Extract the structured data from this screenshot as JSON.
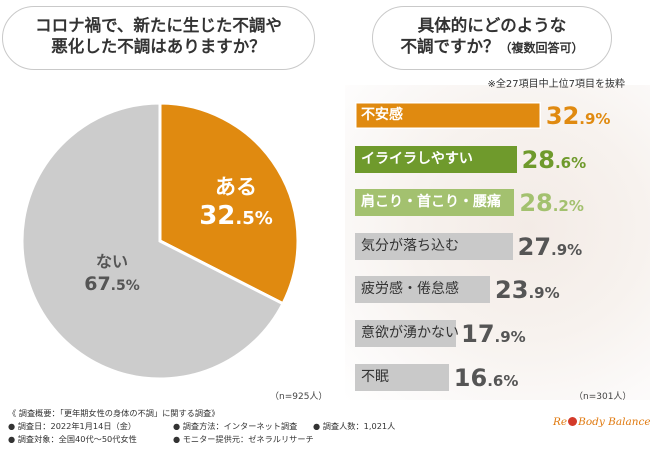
{
  "question_left": {
    "line1": "コロナ禍で、新たに生じた不調や",
    "line2": "悪化した不調はありますか？"
  },
  "question_right": {
    "line1": "具体的にどのような",
    "line2": "不調ですか？",
    "line2_small": "（複数回答可）"
  },
  "note": "※全27項目中上位7項目を抜粋",
  "n_left": "（n=925人）",
  "n_right": "（n=301人）",
  "colors": {
    "orange": "#e08a10",
    "green_dark": "#6f9a2c",
    "green_light": "#a3c16f",
    "gray_bar": "#c9c9c9",
    "pie_gray": "#cccccc",
    "pct_gray": "#555555"
  },
  "chart_data": [
    {
      "type": "pie",
      "slices": [
        {
          "name": "ある",
          "value": 32.5,
          "label_int": "32",
          "label_dec": ".5",
          "unit": "%"
        },
        {
          "name": "ない",
          "value": 67.5,
          "label_int": "67",
          "label_dec": ".5",
          "unit": "%"
        }
      ]
    },
    {
      "type": "bar",
      "orientation": "horizontal",
      "categories": [
        "不安感",
        "イライラしやすい",
        "肩こり・首こり・腰痛",
        "気分が落ち込む",
        "疲労感・倦怠感",
        "意欲が湧かない",
        "不眠"
      ],
      "values": [
        32.9,
        28.6,
        28.2,
        27.9,
        23.9,
        17.9,
        16.6
      ],
      "labels": [
        {
          "int": "32",
          "dec": ".9%"
        },
        {
          "int": "28",
          "dec": ".6%"
        },
        {
          "int": "28",
          "dec": ".2%"
        },
        {
          "int": "27",
          "dec": ".9%"
        },
        {
          "int": "23",
          "dec": ".9%"
        },
        {
          "int": "17",
          "dec": ".9%"
        },
        {
          "int": "16",
          "dec": ".6%"
        }
      ]
    }
  ],
  "footer": {
    "title": "《 調査概要：「更年期女性の身体の不調」に関する調査》",
    "date": "● 調査日：2022年1月14日（金）",
    "method": "● 調査方法：インターネット調査",
    "count": "● 調査人数：1,021人",
    "target": "● 調査対象：全国40代～50代女性",
    "provider": "● モニター提供元：ゼネラルリサーチ"
  },
  "logo": {
    "part1": "Re",
    "part2": "Body Balance"
  }
}
